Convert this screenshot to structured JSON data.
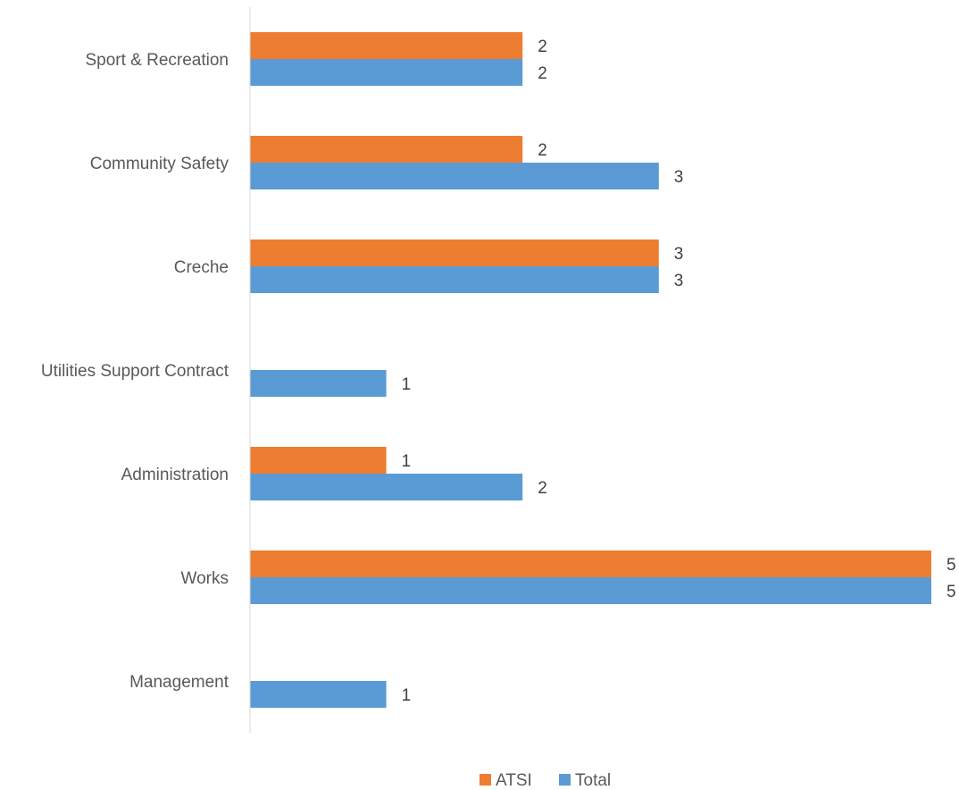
{
  "chart_data": {
    "type": "bar",
    "orientation": "horizontal",
    "categories": [
      "Sport & Recreation",
      "Community Safety",
      "Creche",
      "Utilities Support Contract",
      "Administration",
      "Works",
      "Management"
    ],
    "series": [
      {
        "name": "ATSI",
        "color": "#ED7D31",
        "values": [
          2,
          2,
          3,
          null,
          1,
          5,
          null
        ]
      },
      {
        "name": "Total",
        "color": "#5B9BD5",
        "values": [
          2,
          3,
          3,
          1,
          2,
          5,
          1
        ]
      }
    ],
    "xlim": [
      0,
      5
    ],
    "grid": false,
    "legend_position": "bottom"
  }
}
